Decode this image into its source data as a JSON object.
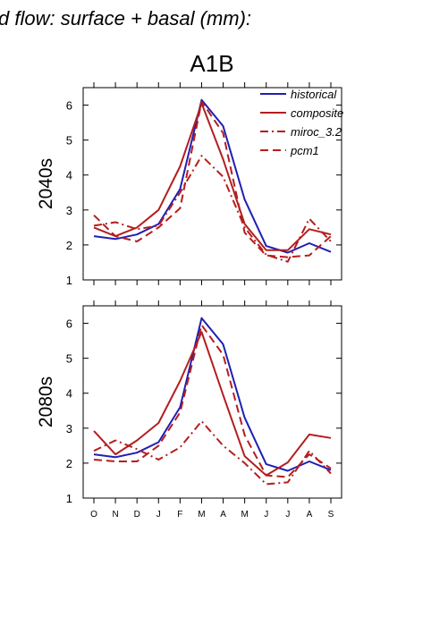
{
  "figure": {
    "title": "d flow: surface + basal (mm):",
    "scenario": "A1B"
  },
  "chart_data": [
    {
      "type": "line",
      "row_label": "2040s",
      "categories": [
        "O",
        "N",
        "D",
        "J",
        "F",
        "M",
        "A",
        "M",
        "J",
        "J",
        "A",
        "S"
      ],
      "ylim": [
        1,
        6.5
      ],
      "yticks": [
        1,
        2,
        3,
        4,
        5,
        6
      ],
      "legend_position": "top-right",
      "series": [
        {
          "name": "historical",
          "color": "#1f1fb4",
          "style": "solid",
          "values": [
            2.25,
            2.17,
            2.3,
            2.6,
            3.6,
            6.15,
            5.4,
            3.3,
            1.97,
            1.78,
            2.05,
            1.8
          ]
        },
        {
          "name": "composite",
          "color": "#b41e1e",
          "style": "solid",
          "values": [
            2.5,
            2.25,
            2.5,
            3.0,
            4.25,
            6.05,
            4.45,
            2.6,
            1.85,
            1.85,
            2.45,
            2.3
          ]
        },
        {
          "name": "miroc_3.2",
          "color": "#b41e1e",
          "style": "dashdot",
          "values": [
            2.55,
            2.65,
            2.45,
            2.55,
            3.5,
            4.55,
            3.95,
            2.5,
            1.72,
            1.52,
            2.75,
            2.1
          ]
        },
        {
          "name": "pcm1",
          "color": "#b41e1e",
          "style": "dash",
          "values": [
            2.85,
            2.25,
            2.1,
            2.5,
            3.05,
            6.1,
            5.2,
            2.35,
            1.7,
            1.65,
            1.7,
            2.25
          ]
        }
      ]
    },
    {
      "type": "line",
      "row_label": "2080s",
      "categories": [
        "O",
        "N",
        "D",
        "J",
        "F",
        "M",
        "A",
        "M",
        "J",
        "J",
        "A",
        "S"
      ],
      "ylim": [
        1,
        6.5
      ],
      "yticks": [
        1,
        2,
        3,
        4,
        5,
        6
      ],
      "series": [
        {
          "name": "historical",
          "color": "#1f1fb4",
          "style": "solid",
          "values": [
            2.25,
            2.17,
            2.3,
            2.6,
            3.6,
            6.15,
            5.4,
            3.3,
            1.97,
            1.78,
            2.05,
            1.8
          ]
        },
        {
          "name": "composite",
          "color": "#b41e1e",
          "style": "solid",
          "values": [
            2.92,
            2.25,
            2.65,
            3.15,
            4.35,
            5.75,
            3.95,
            2.2,
            1.65,
            2.02,
            2.82,
            2.72
          ]
        },
        {
          "name": "miroc_3.2",
          "color": "#b41e1e",
          "style": "dashdot",
          "values": [
            2.35,
            2.65,
            2.4,
            2.1,
            2.45,
            3.2,
            2.5,
            2.0,
            1.4,
            1.45,
            2.35,
            1.7
          ]
        },
        {
          "name": "pcm1",
          "color": "#b41e1e",
          "style": "dash",
          "values": [
            2.1,
            2.05,
            2.05,
            2.5,
            3.45,
            5.95,
            5.1,
            2.8,
            1.65,
            1.6,
            2.25,
            1.85
          ]
        }
      ]
    }
  ]
}
